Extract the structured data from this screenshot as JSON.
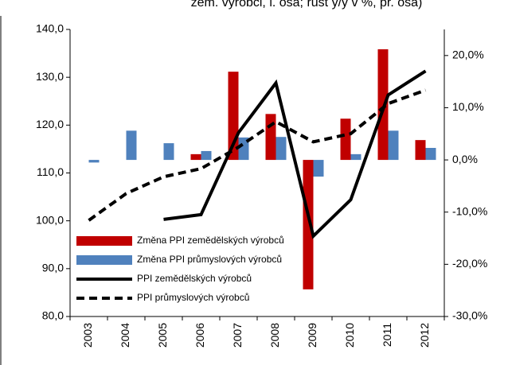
{
  "chart_data": {
    "type": "bar-line",
    "title": "zem. výrobci, l. osa; růst y/y v %, pr. osa)",
    "categories": [
      "2003",
      "2004",
      "2005",
      "2006",
      "2007",
      "2008",
      "2009",
      "2010",
      "2011",
      "2012"
    ],
    "series": [
      {
        "name": "Změna PPI zemědělských výrobců",
        "type": "bar",
        "axis": "y2",
        "color": "#c00000",
        "values": [
          null,
          null,
          null,
          1.1,
          16.9,
          8.8,
          -24.8,
          7.9,
          21.2,
          3.8
        ]
      },
      {
        "name": "Změna PPI průmyslových výrobců",
        "type": "bar",
        "axis": "y2",
        "color": "#4f81bd",
        "values": [
          -0.5,
          5.6,
          3.2,
          1.7,
          4.3,
          4.4,
          -3.2,
          1.1,
          5.6,
          2.3
        ]
      },
      {
        "name": "PPI zemědělských výrobců",
        "type": "line",
        "axis": "y",
        "color": "#000000",
        "dash": false,
        "values": [
          null,
          null,
          100.3,
          101.3,
          118.4,
          128.8,
          96.8,
          104.4,
          126.3,
          131.3
        ]
      },
      {
        "name": "PPI průmyslových výrobců",
        "type": "line",
        "axis": "y",
        "color": "#000000",
        "dash": true,
        "values": [
          100.1,
          105.7,
          109.2,
          110.9,
          115.4,
          120.7,
          116.5,
          118.2,
          124.5,
          127.3
        ]
      }
    ],
    "ylim": [
      80,
      140
    ],
    "yticks": [
      {
        "value": 80,
        "label": "80,0"
      },
      {
        "value": 90,
        "label": "90,0"
      },
      {
        "value": 100,
        "label": "100,0"
      },
      {
        "value": 110,
        "label": "110,0"
      },
      {
        "value": 120,
        "label": "120,0"
      },
      {
        "value": 130,
        "label": "130,0"
      },
      {
        "value": 140,
        "label": "140,0"
      }
    ],
    "y2lim": [
      -30,
      25
    ],
    "y2ticks": [
      {
        "value": -30,
        "label": "-30,0%"
      },
      {
        "value": -20,
        "label": "-20,0%"
      },
      {
        "value": -10,
        "label": "-10,0%"
      },
      {
        "value": 0,
        "label": "0,0%"
      },
      {
        "value": 10,
        "label": "10,0%"
      },
      {
        "value": 20,
        "label": "20,0%"
      }
    ],
    "legend": "lower-left",
    "grid": false
  }
}
